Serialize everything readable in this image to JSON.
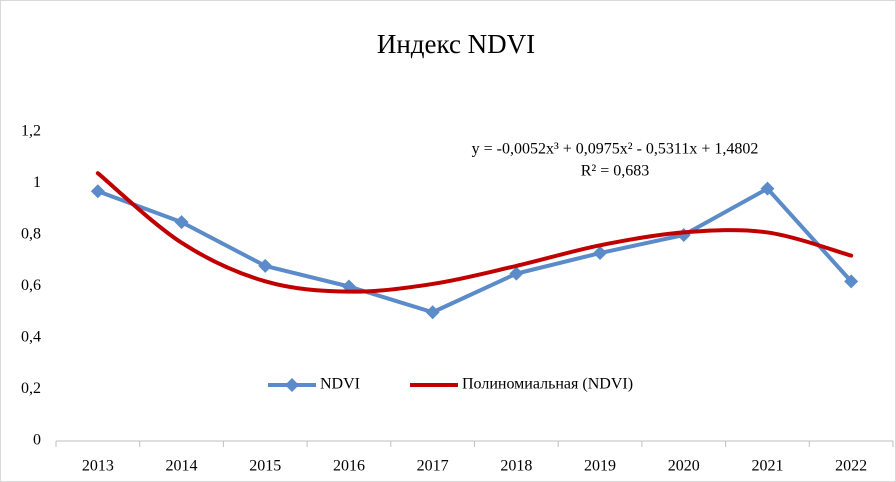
{
  "chart_data": {
    "type": "line",
    "title": "Индекс NDVI",
    "categories": [
      "2013",
      "2014",
      "2015",
      "2016",
      "2017",
      "2018",
      "2019",
      "2020",
      "2021",
      "2022"
    ],
    "series": [
      {
        "name": "NDVI",
        "color": "#5b8bc8",
        "marker": "diamond",
        "smooth": false,
        "values": [
          0.97,
          0.85,
          0.68,
          0.6,
          0.5,
          0.65,
          0.73,
          0.8,
          0.98,
          0.62
        ]
      },
      {
        "name": "Полиномиальная (NDVI)",
        "color": "#c00000",
        "marker": "none",
        "smooth": true,
        "values": [
          1.04,
          0.77,
          0.62,
          0.58,
          0.61,
          0.68,
          0.76,
          0.81,
          0.81,
          0.72
        ]
      }
    ],
    "ylim": [
      0,
      1.2
    ],
    "yticks": [
      0,
      {
        "value": 0.2,
        "label": "0,2"
      },
      {
        "value": 0.4,
        "label": "0,4"
      },
      {
        "value": 0.6,
        "label": "0,6"
      },
      {
        "value": 0.8,
        "label": "0,8"
      },
      1,
      {
        "value": 1.2,
        "label": "1,2"
      }
    ],
    "grid": false,
    "legend": "bottom",
    "annotations": [
      "y = -0,0052x³ + 0,0975x² - 0,5311x + 1,4802",
      "R² = 0,683"
    ]
  }
}
